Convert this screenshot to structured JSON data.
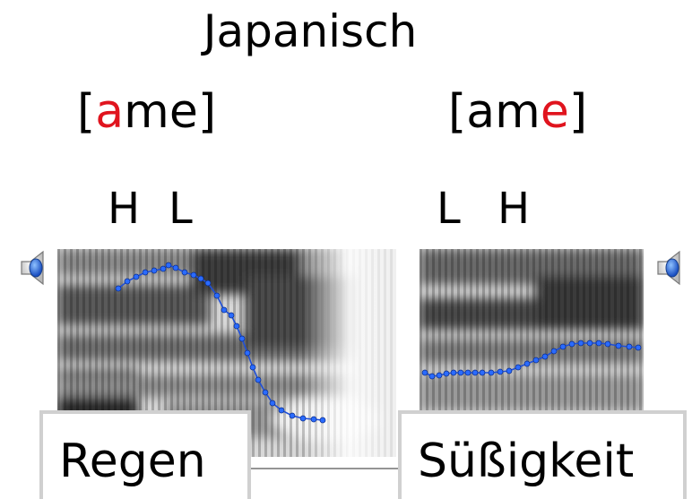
{
  "title": "Japanisch",
  "words": [
    {
      "ipa_open": "[",
      "ipa_highlight_a": "a",
      "ipa_rest": "me",
      "ipa_close": "]",
      "tones": [
        "H",
        "L"
      ],
      "meaning": "Regen"
    },
    {
      "ipa_open": "[",
      "ipa_plain": "am",
      "ipa_highlight_e": "e",
      "ipa_close": "]",
      "tones": [
        "L",
        "H"
      ],
      "meaning": "Süßigkeit"
    }
  ],
  "colors": {
    "highlight": "#e0141e",
    "pitch_track": "#2a6bff"
  },
  "icons": [
    "speaker-icon",
    "speaker-icon"
  ]
}
